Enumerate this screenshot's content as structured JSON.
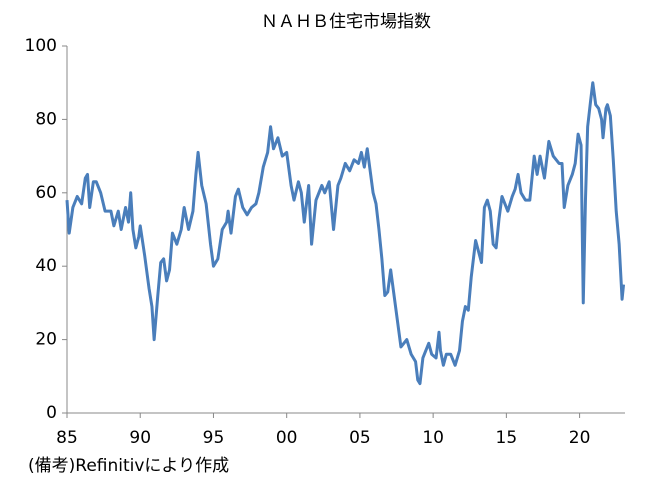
{
  "chart_data": {
    "type": "line",
    "title": "ＮＡＨＢ住宅市場指数",
    "note": "(備考)Refinitivにより作成",
    "xlim": [
      1985,
      2023.1
    ],
    "xticks": [
      {
        "value": 1985,
        "label": "85"
      },
      {
        "value": 1990,
        "label": "90"
      },
      {
        "value": 1995,
        "label": "95"
      },
      {
        "value": 2000,
        "label": "00"
      },
      {
        "value": 2005,
        "label": "05"
      },
      {
        "value": 2010,
        "label": "10"
      },
      {
        "value": 2015,
        "label": "15"
      },
      {
        "value": 2020,
        "label": "20"
      }
    ],
    "ylim": [
      0,
      100
    ],
    "yticks": [
      0,
      20,
      40,
      60,
      80,
      100
    ],
    "grid": false,
    "x": [
      1985.0,
      1985.15,
      1985.4,
      1985.7,
      1986.0,
      1986.25,
      1986.4,
      1986.55,
      1986.8,
      1987.0,
      1987.3,
      1987.6,
      1988.0,
      1988.2,
      1988.5,
      1988.7,
      1989.0,
      1989.2,
      1989.35,
      1989.5,
      1989.7,
      1989.9,
      1990.0,
      1990.3,
      1990.6,
      1990.8,
      1990.95,
      1991.2,
      1991.4,
      1991.6,
      1991.8,
      1992.0,
      1992.2,
      1992.5,
      1992.8,
      1993.0,
      1993.3,
      1993.6,
      1993.8,
      1993.95,
      1994.2,
      1994.5,
      1994.8,
      1995.0,
      1995.3,
      1995.6,
      1995.9,
      1996.0,
      1996.2,
      1996.5,
      1996.7,
      1997.0,
      1997.3,
      1997.6,
      1997.9,
      1998.1,
      1998.4,
      1998.7,
      1998.9,
      1999.1,
      1999.4,
      1999.7,
      2000.0,
      2000.3,
      2000.5,
      2000.8,
      2001.0,
      2001.2,
      2001.5,
      2001.7,
      2002.0,
      2002.4,
      2002.6,
      2002.9,
      2003.2,
      2003.5,
      2003.7,
      2004.0,
      2004.3,
      2004.6,
      2004.9,
      2005.1,
      2005.3,
      2005.5,
      2005.7,
      2005.9,
      2006.1,
      2006.3,
      2006.5,
      2006.7,
      2006.9,
      2007.1,
      2007.4,
      2007.6,
      2007.8,
      2008.0,
      2008.2,
      2008.5,
      2008.8,
      2008.95,
      2009.1,
      2009.3,
      2009.5,
      2009.7,
      2009.9,
      2010.2,
      2010.4,
      2010.5,
      2010.7,
      2010.9,
      2011.2,
      2011.5,
      2011.8,
      2012.0,
      2012.2,
      2012.4,
      2012.6,
      2012.9,
      2013.1,
      2013.3,
      2013.5,
      2013.7,
      2013.9,
      2014.1,
      2014.3,
      2014.5,
      2014.7,
      2014.9,
      2015.1,
      2015.4,
      2015.6,
      2015.8,
      2016.0,
      2016.3,
      2016.6,
      2016.9,
      2017.1,
      2017.3,
      2017.6,
      2017.9,
      2018.2,
      2018.6,
      2018.8,
      2018.95,
      2019.2,
      2019.5,
      2019.7,
      2019.9,
      2020.1,
      2020.25,
      2020.4,
      2020.55,
      2020.75,
      2020.9,
      2021.1,
      2021.3,
      2021.5,
      2021.6,
      2021.8,
      2021.9,
      2022.1,
      2022.3,
      2022.5,
      2022.7,
      2022.9,
      2023.0
    ],
    "series": [
      {
        "color": "#4a7ebb",
        "values": [
          58,
          49,
          56,
          59,
          57,
          64,
          65,
          56,
          63,
          63,
          60,
          55,
          55,
          51,
          55,
          50,
          56,
          52,
          60,
          50,
          45,
          48,
          51,
          43,
          34,
          29,
          20,
          32,
          41,
          42,
          36,
          39,
          49,
          46,
          50,
          56,
          50,
          55,
          65,
          71,
          62,
          57,
          46,
          40,
          42,
          50,
          52,
          55,
          49,
          59,
          61,
          56,
          54,
          56,
          57,
          60,
          67,
          71,
          78,
          72,
          75,
          70,
          71,
          62,
          58,
          63,
          60,
          52,
          62,
          46,
          58,
          62,
          60,
          63,
          50,
          62,
          64,
          68,
          66,
          69,
          68,
          71,
          67,
          72,
          66,
          60,
          57,
          50,
          42,
          32,
          33,
          39,
          30,
          24,
          18,
          19,
          20,
          16,
          14,
          9,
          8,
          15,
          17,
          19,
          16,
          15,
          22,
          17,
          13,
          16,
          16,
          13,
          17,
          25,
          29,
          28,
          37,
          47,
          44,
          41,
          56,
          58,
          55,
          46,
          45,
          53,
          59,
          57,
          55,
          59,
          61,
          65,
          60,
          58,
          58,
          70,
          65,
          70,
          64,
          74,
          70,
          68,
          68,
          56,
          62,
          65,
          68,
          76,
          73,
          30,
          58,
          78,
          85,
          90,
          84,
          83,
          80,
          75,
          83,
          84,
          81,
          69,
          55,
          46,
          31,
          35
        ]
      }
    ]
  }
}
